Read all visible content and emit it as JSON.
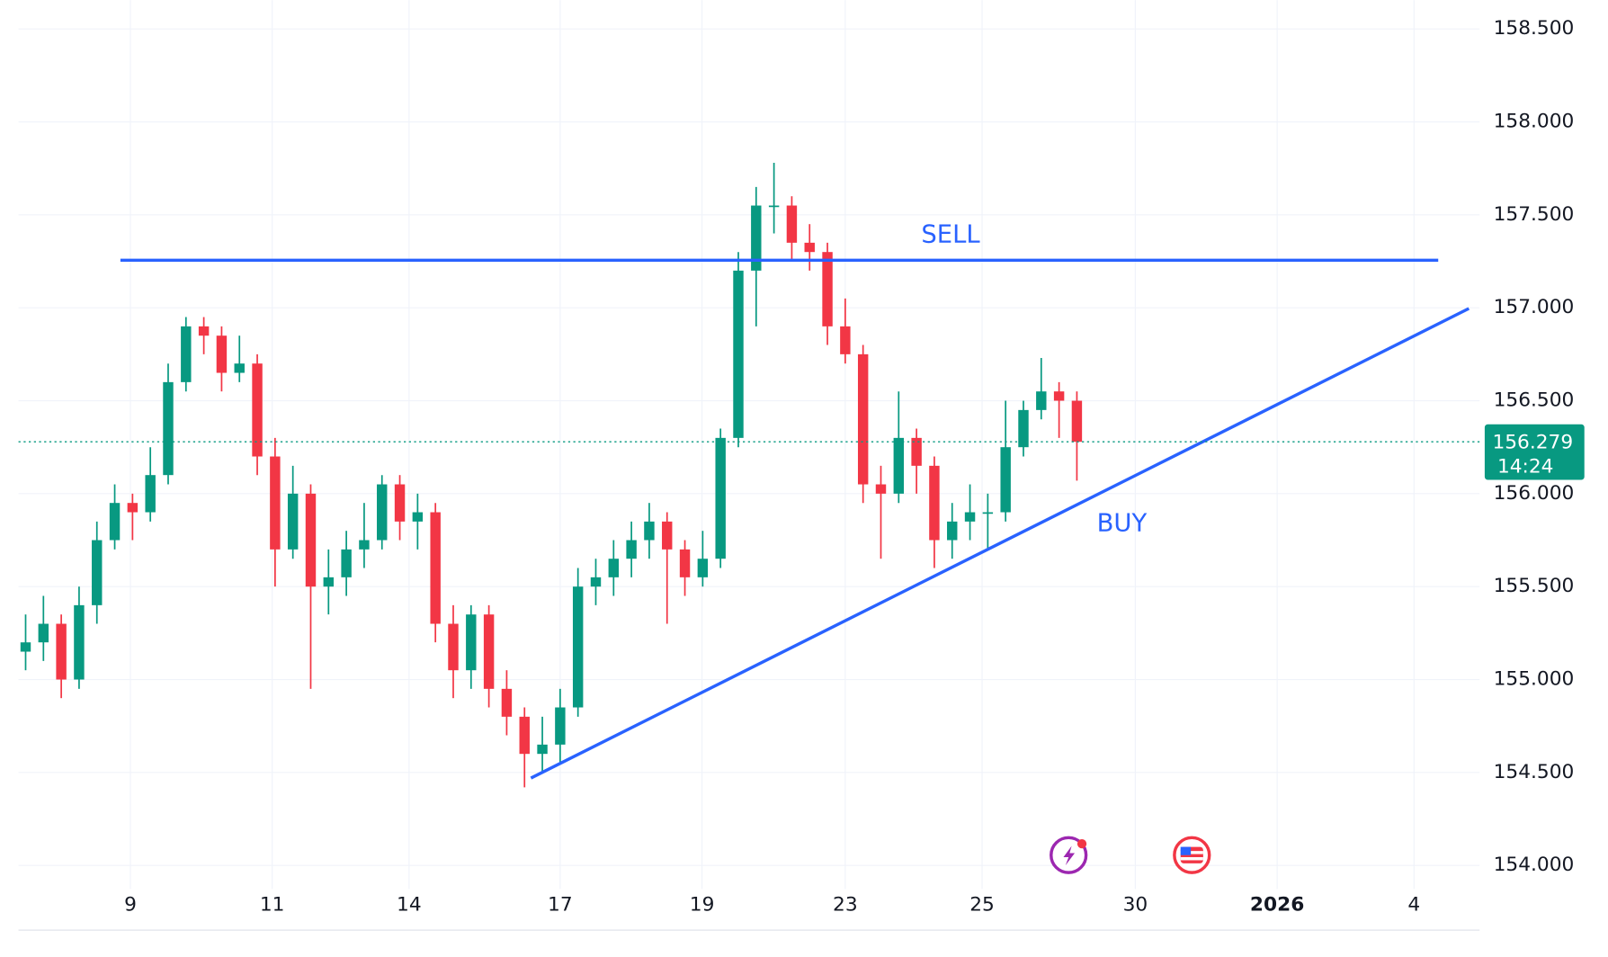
{
  "chart_data": {
    "type": "candlestick",
    "up_color": "#089981",
    "down_color": "#f23645",
    "x": [
      0.1,
      0.35,
      0.6,
      0.85,
      1.1,
      1.35,
      1.6,
      1.85,
      2.1,
      2.35,
      2.6,
      2.85,
      3.1,
      3.35,
      3.6,
      3.85,
      4.1,
      4.35,
      4.6,
      4.85,
      5.1,
      5.35,
      5.6,
      5.85,
      6.1,
      6.35,
      6.6,
      6.85,
      7.1,
      7.35,
      7.6,
      7.85,
      8.1,
      8.35,
      8.6,
      8.85,
      9.1,
      9.35,
      9.6,
      9.85,
      10.1,
      10.35,
      10.6,
      10.85,
      11.1,
      11.35,
      11.6,
      11.85,
      12.1,
      12.35,
      12.6,
      12.85,
      13.1,
      13.35,
      13.6,
      13.85,
      14.1,
      14.35,
      14.6,
      14.85
    ],
    "open": [
      155.15,
      155.2,
      155.3,
      155.0,
      155.4,
      155.75,
      155.95,
      155.9,
      156.1,
      156.6,
      156.9,
      156.85,
      156.65,
      156.7,
      156.2,
      155.7,
      156.0,
      155.5,
      155.55,
      155.7,
      155.75,
      156.05,
      155.85,
      155.9,
      155.3,
      155.05,
      155.35,
      154.95,
      154.8,
      154.6,
      154.65,
      154.85,
      155.5,
      155.55,
      155.65,
      155.75,
      155.85,
      155.7,
      155.55,
      155.65,
      156.3,
      157.2,
      157.55,
      157.55,
      157.35,
      157.3,
      156.9,
      156.75,
      156.05,
      156.0,
      156.3,
      156.15,
      155.75,
      155.85,
      155.9,
      155.9,
      156.25,
      156.45,
      156.55,
      156.5
    ],
    "high": [
      155.35,
      155.45,
      155.35,
      155.5,
      155.85,
      156.05,
      156.0,
      156.25,
      156.7,
      156.95,
      156.95,
      156.9,
      156.85,
      156.75,
      156.3,
      156.15,
      156.05,
      155.7,
      155.8,
      155.95,
      156.1,
      156.1,
      156.0,
      155.95,
      155.4,
      155.4,
      155.4,
      155.05,
      154.85,
      154.8,
      154.95,
      155.6,
      155.65,
      155.75,
      155.85,
      155.95,
      155.9,
      155.75,
      155.8,
      156.35,
      157.3,
      157.65,
      157.78,
      157.6,
      157.45,
      157.35,
      157.05,
      156.8,
      156.15,
      156.55,
      156.35,
      156.2,
      155.95,
      156.05,
      156.0,
      156.5,
      156.5,
      156.73,
      156.6,
      156.55
    ],
    "low": [
      155.05,
      155.1,
      154.9,
      154.95,
      155.3,
      155.7,
      155.75,
      155.85,
      156.05,
      156.55,
      156.75,
      156.55,
      156.6,
      156.1,
      155.5,
      155.65,
      154.95,
      155.35,
      155.45,
      155.6,
      155.7,
      155.75,
      155.7,
      155.2,
      154.9,
      154.95,
      154.85,
      154.7,
      154.42,
      154.5,
      154.55,
      154.8,
      155.4,
      155.45,
      155.55,
      155.65,
      155.3,
      155.45,
      155.5,
      155.6,
      156.25,
      156.9,
      157.4,
      157.25,
      157.2,
      156.8,
      156.7,
      155.95,
      155.65,
      155.95,
      156.0,
      155.6,
      155.65,
      155.75,
      155.7,
      155.85,
      156.2,
      156.4,
      156.3,
      156.07
    ],
    "close": [
      155.2,
      155.3,
      155.0,
      155.4,
      155.75,
      155.95,
      155.9,
      156.1,
      156.6,
      156.9,
      156.85,
      156.65,
      156.7,
      156.2,
      155.7,
      156.0,
      155.5,
      155.55,
      155.7,
      155.75,
      156.05,
      155.85,
      155.9,
      155.3,
      155.05,
      155.35,
      154.95,
      154.8,
      154.6,
      154.65,
      154.85,
      155.5,
      155.55,
      155.65,
      155.75,
      155.85,
      155.7,
      155.55,
      155.65,
      156.3,
      157.2,
      157.55,
      157.55,
      157.35,
      157.3,
      156.9,
      156.75,
      156.05,
      156.0,
      156.3,
      156.15,
      155.75,
      155.85,
      155.9,
      155.9,
      156.25,
      156.45,
      156.55,
      156.5,
      156.279
    ],
    "xlim": [
      0,
      20.5
    ],
    "xticks": [
      {
        "value": 1.57,
        "label": "9"
      },
      {
        "value": 3.56,
        "label": "11"
      },
      {
        "value": 5.48,
        "label": "14"
      },
      {
        "value": 7.6,
        "label": "17"
      },
      {
        "value": 9.59,
        "label": "19"
      },
      {
        "value": 11.6,
        "label": "23"
      },
      {
        "value": 13.52,
        "label": "25"
      },
      {
        "value": 15.67,
        "label": "30"
      },
      {
        "value": 17.66,
        "label": "2026"
      },
      {
        "value": 19.58,
        "label": "4"
      }
    ],
    "ylim": [
      153.873,
      158.655
    ],
    "yticks": [
      {
        "value": 154,
        "label": "154.000"
      },
      {
        "value": 154.5,
        "label": "154.500"
      },
      {
        "value": 155,
        "label": "155.000"
      },
      {
        "value": 155.5,
        "label": "155.500"
      },
      {
        "value": 156,
        "label": "156.000"
      },
      {
        "value": 156.5,
        "label": "156.500"
      },
      {
        "value": 157,
        "label": "157.000"
      },
      {
        "value": 157.5,
        "label": "157.500"
      },
      {
        "value": 158,
        "label": "158.000"
      },
      {
        "value": 158.5,
        "label": "158.500"
      }
    ],
    "grid": true,
    "last_price": 156.279,
    "countdown": "14:24",
    "lines": [
      {
        "label": "SELL",
        "color": "#2962ff",
        "label_side": "above",
        "x": [
          1.43,
          19.92
        ],
        "y": [
          157.256,
          157.256
        ]
      },
      {
        "label": "BUY",
        "color": "#2962ff",
        "label_side": "below",
        "x": [
          7.19,
          20.35
        ],
        "y": [
          154.47,
          156.996
        ]
      }
    ]
  }
}
